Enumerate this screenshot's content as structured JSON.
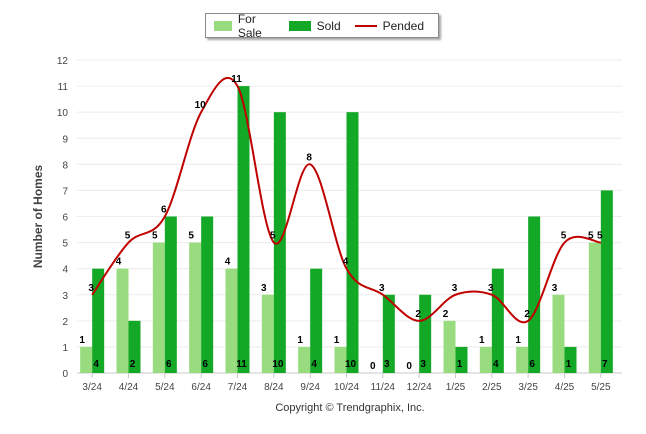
{
  "chart_data": {
    "type": "bar",
    "title": "",
    "xlabel": "",
    "ylabel": "Number of Homes",
    "ylim": [
      0,
      12
    ],
    "yticks": [
      "0",
      "1",
      "2",
      "3",
      "4",
      "5",
      "6",
      "7",
      "8",
      "9",
      "10",
      "11",
      "12"
    ],
    "categories": [
      "3/24",
      "4/24",
      "5/24",
      "6/24",
      "7/24",
      "8/24",
      "9/24",
      "10/24",
      "11/24",
      "12/24",
      "1/25",
      "2/25",
      "3/25",
      "4/25",
      "5/25"
    ],
    "series": [
      {
        "name": "For Sale",
        "type": "bar",
        "color": "#98dc7f",
        "values": [
          1,
          4,
          5,
          5,
          4,
          3,
          1,
          1,
          0,
          0,
          2,
          1,
          1,
          3,
          5
        ]
      },
      {
        "name": "Sold",
        "type": "bar",
        "color": "#13a826",
        "values": [
          4,
          2,
          6,
          6,
          11,
          10,
          4,
          10,
          3,
          3,
          1,
          4,
          6,
          1,
          7
        ]
      },
      {
        "name": "Pended",
        "type": "line",
        "color": "#c00000",
        "values": [
          3,
          5,
          6,
          10,
          11,
          5,
          8,
          4,
          3,
          2,
          3,
          3,
          2,
          5,
          5
        ]
      }
    ],
    "legend_position": "top",
    "grid": true
  },
  "footer": {
    "copyright": "Copyright © Trendgraphix, Inc."
  }
}
